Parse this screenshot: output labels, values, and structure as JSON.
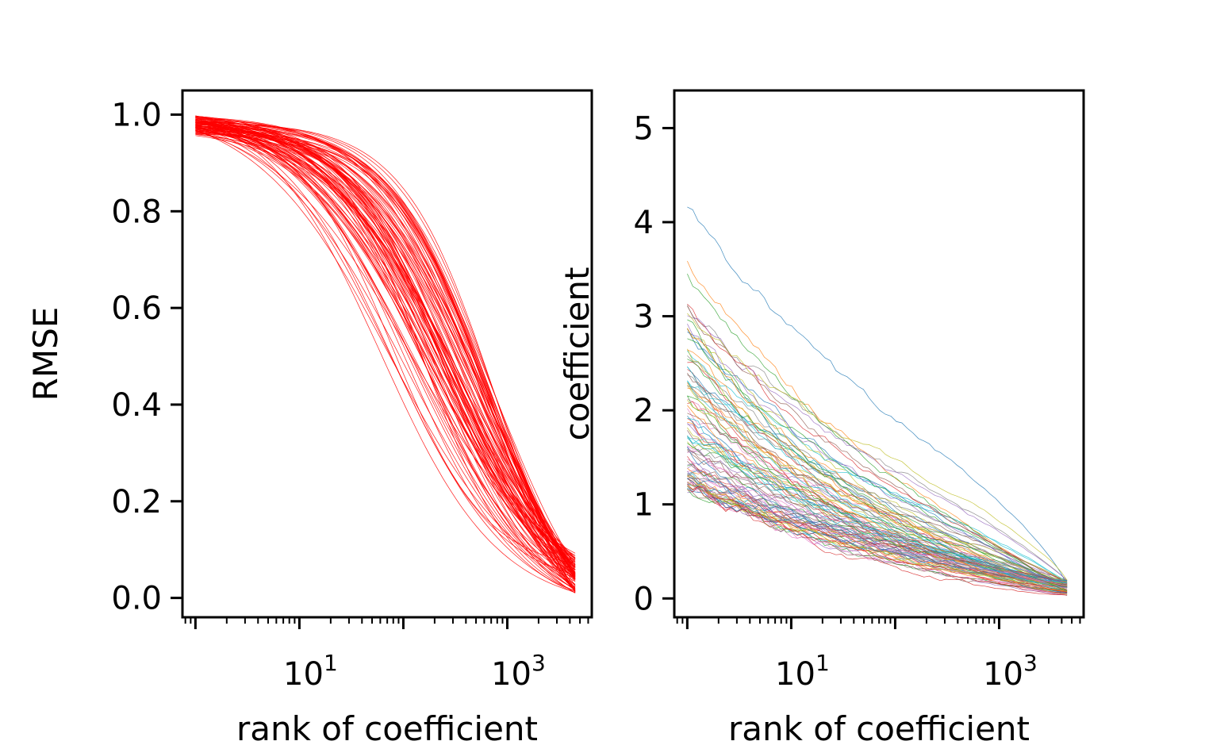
{
  "chart_data": [
    {
      "type": "line",
      "title": "",
      "xlabel": "rank of coefficient",
      "ylabel": "RMSE",
      "xscale": "log",
      "xlim": [
        0.75,
        6500
      ],
      "ylim": [
        -0.04,
        1.05
      ],
      "x_tick_labels": [
        {
          "value": 10,
          "base": "10",
          "exp": "1"
        },
        {
          "value": 1000,
          "base": "10",
          "exp": "3"
        }
      ],
      "y_ticks": [
        0.0,
        0.2,
        0.4,
        0.6,
        0.8,
        1.0
      ],
      "y_tick_labels": [
        "0.0",
        "0.2",
        "0.4",
        "0.6",
        "0.8",
        "1.0"
      ],
      "grid": false,
      "legend": "none",
      "line_color": "#ff0000",
      "series_count": 100,
      "x_range": [
        1,
        4500
      ],
      "series_model": "sigmoid decay of RMSE versus log10(rank)",
      "half_point_rank_range": [
        60,
        800
      ],
      "start_value_range": [
        0.955,
        0.998
      ],
      "end_value_range": [
        0.01,
        0.11
      ]
    },
    {
      "type": "line",
      "title": "",
      "xlabel": "rank of coefficient",
      "ylabel": "coefficient",
      "xscale": "log",
      "xlim": [
        0.75,
        6500
      ],
      "ylim": [
        -0.2,
        5.4
      ],
      "x_tick_labels": [
        {
          "value": 10,
          "base": "10",
          "exp": "1"
        },
        {
          "value": 1000,
          "base": "10",
          "exp": "3"
        }
      ],
      "y_ticks": [
        0,
        1,
        2,
        3,
        4,
        5
      ],
      "y_tick_labels": [
        "0",
        "1",
        "2",
        "3",
        "4",
        "5"
      ],
      "grid": false,
      "legend": "none",
      "palette": [
        "#1f77b4",
        "#ff7f0e",
        "#2ca02c",
        "#d62728",
        "#9467bd",
        "#8c564b",
        "#e377c2",
        "#7f7f7f",
        "#bcbd22",
        "#17becf"
      ],
      "series_count": 100,
      "x_range": [
        1,
        4500
      ],
      "series_model": "noisy decreasing coefficient magnitude versus rank",
      "start_value_range": [
        0.95,
        4.15
      ],
      "end_value_range": [
        0.03,
        0.2
      ]
    }
  ]
}
